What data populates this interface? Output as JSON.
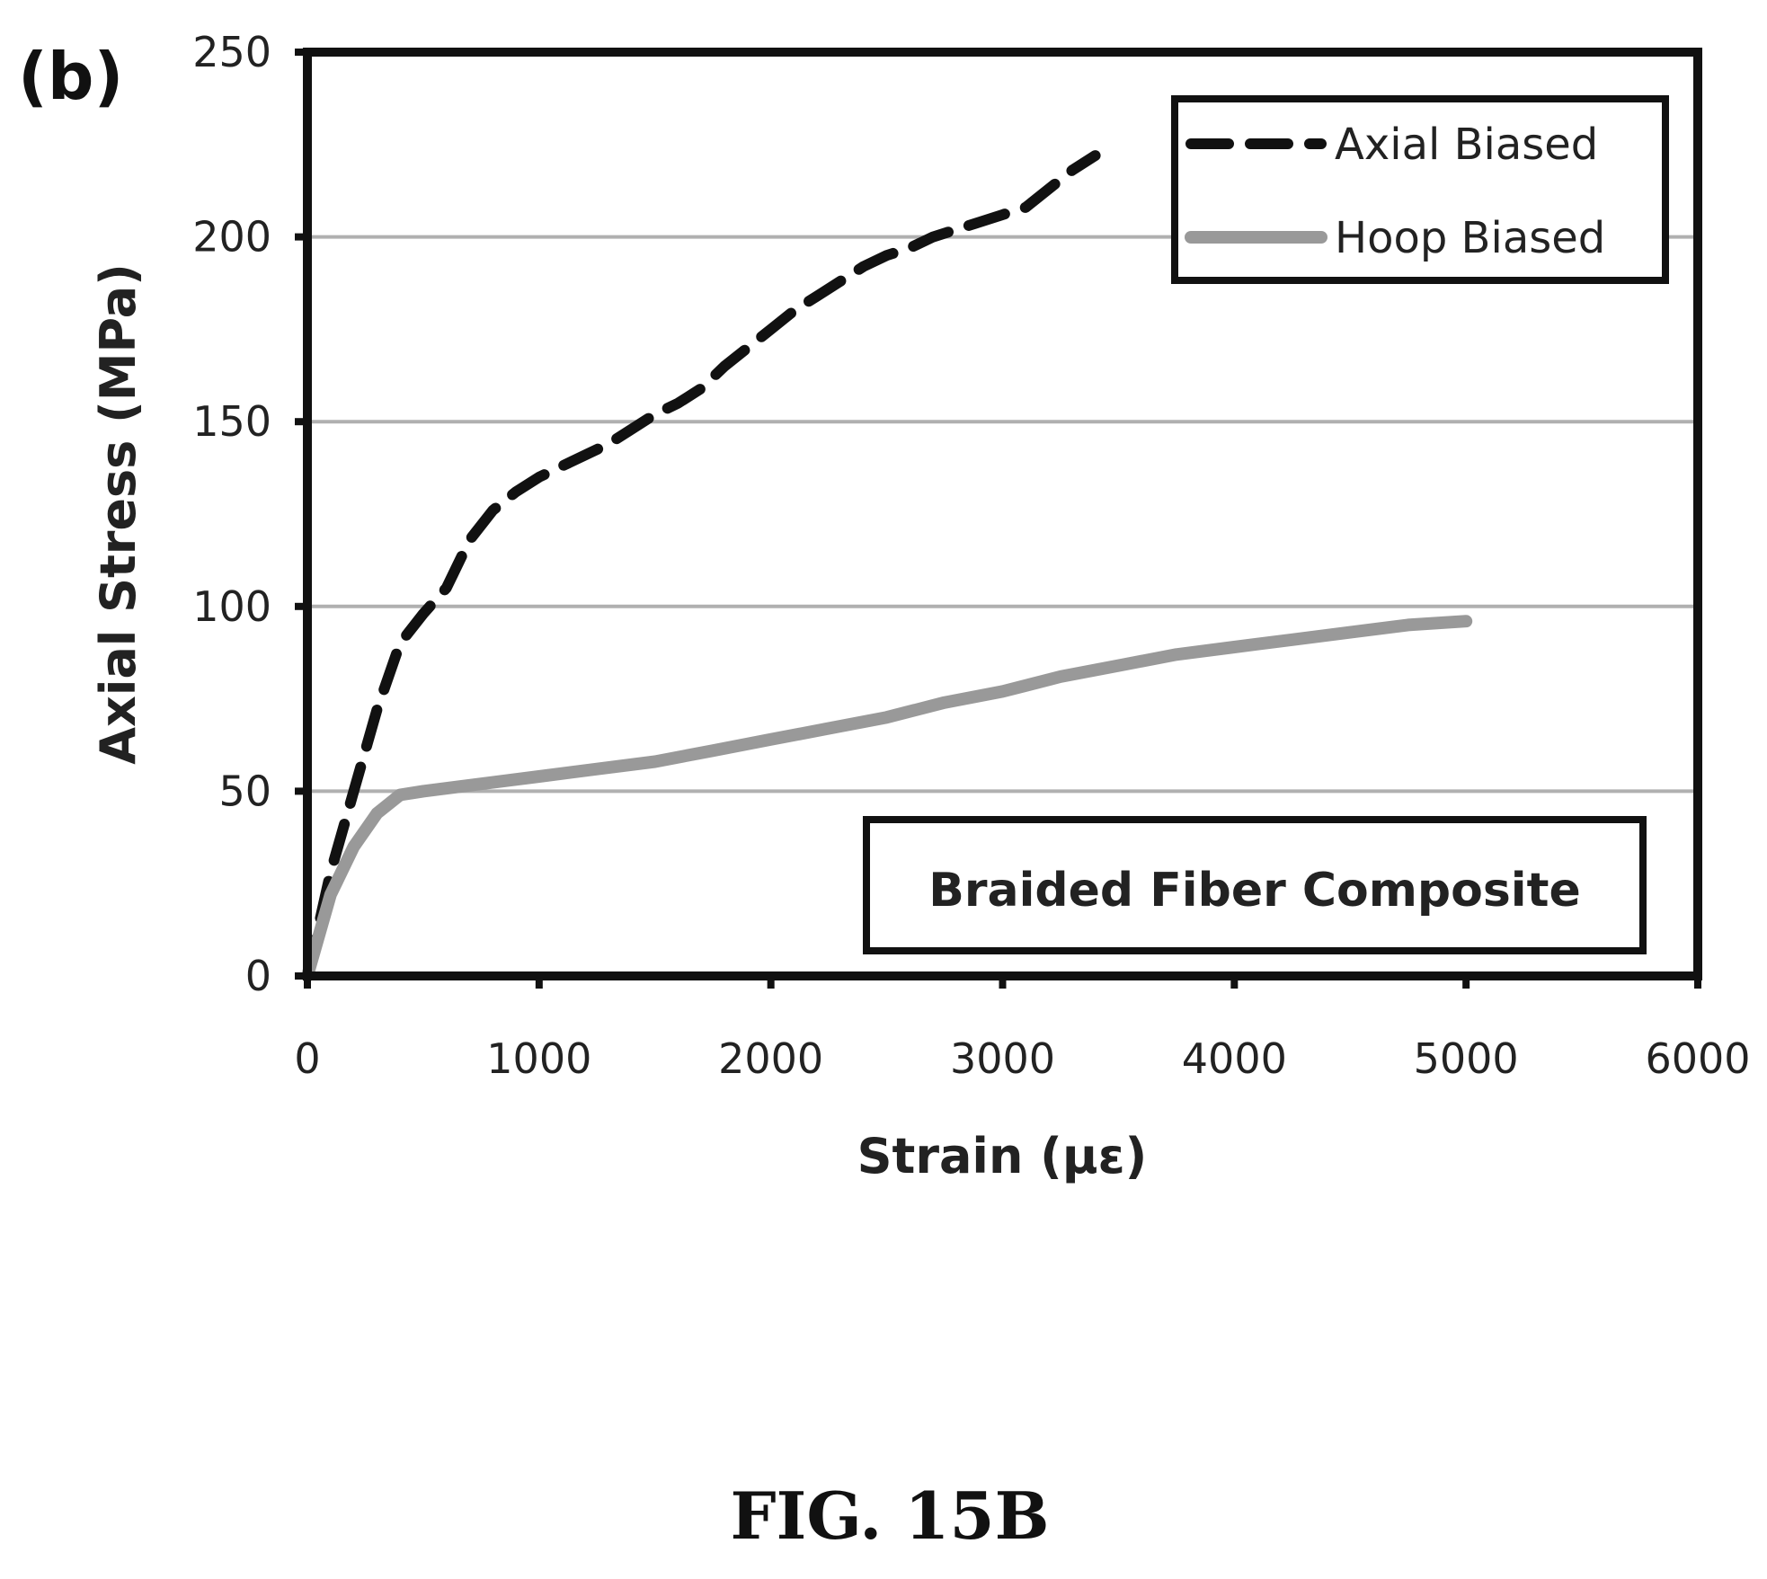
{
  "panel_label": "(b)",
  "caption": "FIG. 15B",
  "colors": {
    "axial": "#111111",
    "hoop": "#999999",
    "grid": "#b0b0b0",
    "frame": "#111111"
  },
  "chart_data": {
    "type": "line",
    "xlabel": "Strain (µε)",
    "ylabel": "Axial Stress (MPa)",
    "xlim": [
      0,
      6000
    ],
    "ylim": [
      0,
      250
    ],
    "xticks": [
      "0",
      "1000",
      "2000",
      "3000",
      "4000",
      "5000",
      "6000"
    ],
    "yticks": [
      "0",
      "50",
      "100",
      "150",
      "200",
      "250"
    ],
    "grid": "horizontal",
    "legend_position": "top-right",
    "annotation": "Braided Fiber Composite",
    "series": [
      {
        "name": "Axial Biased",
        "style": "dashed",
        "x": [
          0,
          100,
          200,
          300,
          400,
          500,
          600,
          700,
          800,
          900,
          1000,
          1100,
          1200,
          1300,
          1400,
          1500,
          1600,
          1700,
          1800,
          1900,
          2000,
          2100,
          2200,
          2300,
          2400,
          2500,
          2600,
          2700,
          2800,
          2900,
          3000,
          3100,
          3200,
          3300,
          3400
        ],
        "y": [
          0,
          28,
          50,
          72,
          90,
          98,
          105,
          118,
          126,
          131,
          135,
          138,
          141,
          144,
          148,
          152,
          155,
          159,
          165,
          170,
          175,
          180,
          184,
          188,
          192,
          195,
          197,
          200,
          202,
          204,
          206,
          208,
          213,
          218,
          222
        ]
      },
      {
        "name": "Hoop Biased",
        "style": "solid",
        "x": [
          0,
          100,
          200,
          300,
          400,
          500,
          750,
          1000,
          1250,
          1500,
          1750,
          2000,
          2250,
          2500,
          2750,
          3000,
          3250,
          3500,
          3750,
          4000,
          4250,
          4500,
          4750,
          5000
        ],
        "y": [
          0,
          22,
          35,
          44,
          49,
          50,
          52,
          54,
          56,
          58,
          61,
          64,
          67,
          70,
          74,
          77,
          81,
          84,
          87,
          89,
          91,
          93,
          95,
          96
        ]
      }
    ]
  }
}
